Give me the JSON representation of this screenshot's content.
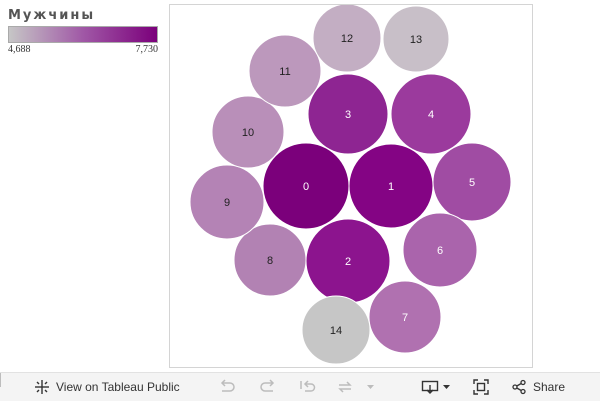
{
  "legend": {
    "title": "Мужчины",
    "min_label": "4,688",
    "max_label": "7,730"
  },
  "colors": {
    "low": "#c6c6c6",
    "high": "#7b007b",
    "frame_border": "#d4d4d4"
  },
  "chart_data": {
    "type": "packed-bubble",
    "color_measure": "Мужчины",
    "color_range": [
      4688,
      7730
    ],
    "bubbles": [
      {
        "label": "0",
        "color": "#7b007b"
      },
      {
        "label": "1",
        "color": "#840484"
      },
      {
        "label": "2",
        "color": "#8c148e"
      },
      {
        "label": "3",
        "color": "#8e2592"
      },
      {
        "label": "4",
        "color": "#9b3a9d"
      },
      {
        "label": "5",
        "color": "#a04ca3"
      },
      {
        "label": "6",
        "color": "#aa64ac"
      },
      {
        "label": "7",
        "color": "#b071b0"
      },
      {
        "label": "8",
        "color": "#b282b3"
      },
      {
        "label": "9",
        "color": "#b483b5"
      },
      {
        "label": "10",
        "color": "#b98fb9"
      },
      {
        "label": "11",
        "color": "#bc98bc"
      },
      {
        "label": "12",
        "color": "#c3aec3"
      },
      {
        "label": "13",
        "color": "#c8bfc8"
      },
      {
        "label": "14",
        "color": "#c6c6c6"
      }
    ]
  },
  "toolbar": {
    "view_label": "View on Tableau Public",
    "share_label": "Share"
  },
  "icons": {
    "view": "tableau-logo-icon",
    "undo": "undo-icon",
    "redo": "redo-icon",
    "revert": "revert-icon",
    "refresh": "refresh-icon",
    "download": "download-icon",
    "fullscreen": "fullscreen-icon",
    "share": "share-icon"
  }
}
